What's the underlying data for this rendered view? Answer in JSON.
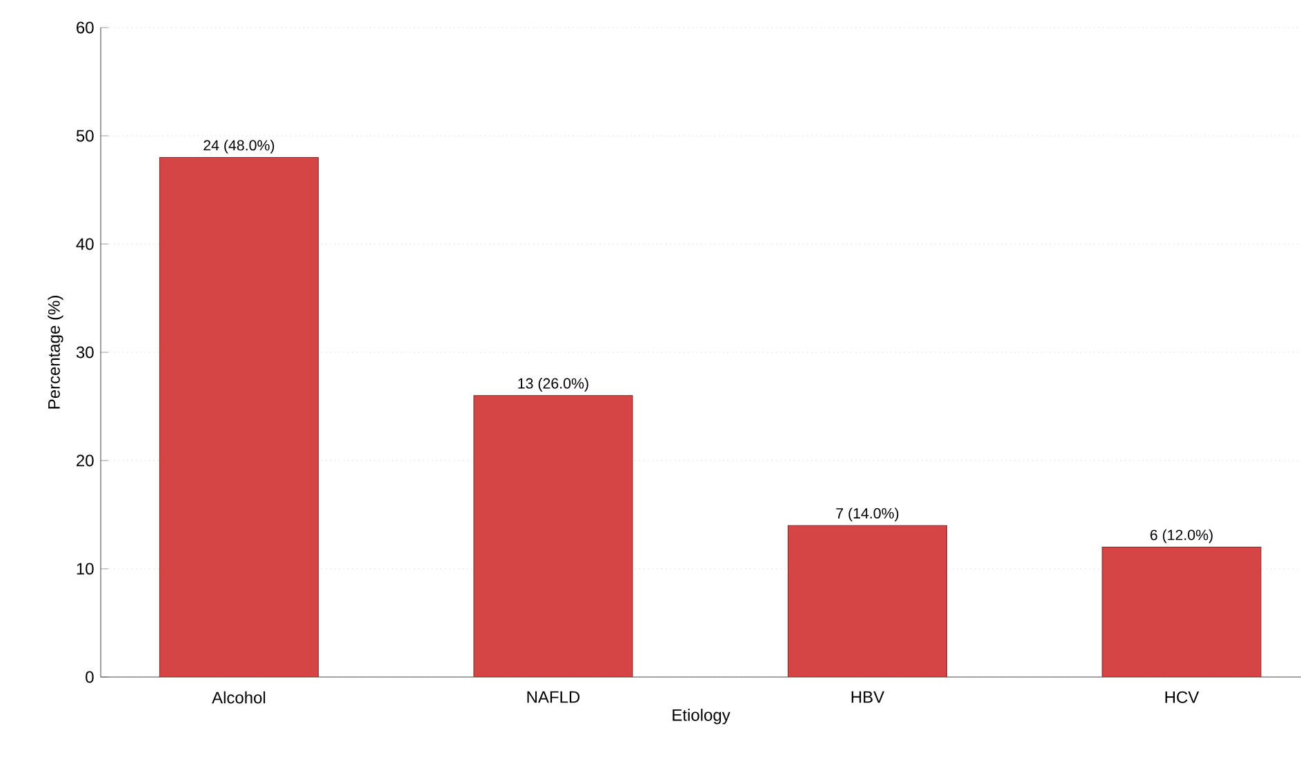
{
  "chart_data": {
    "type": "bar",
    "xlabel": "Etiology",
    "ylabel": "Percentage (%)",
    "categories": [
      "Alcohol",
      "NAFLD",
      "HBV",
      "HCV"
    ],
    "values": [
      48,
      26,
      14,
      12
    ],
    "value_labels": [
      "24 (48.0%)",
      "13 (26.0%)",
      "7 (14.0%)",
      "6 (12.0%)"
    ],
    "color": "#d64545",
    "ylim": [
      0,
      60
    ],
    "yticks": [
      0,
      10,
      20,
      30,
      40,
      50,
      60
    ],
    "grid": "y"
  }
}
